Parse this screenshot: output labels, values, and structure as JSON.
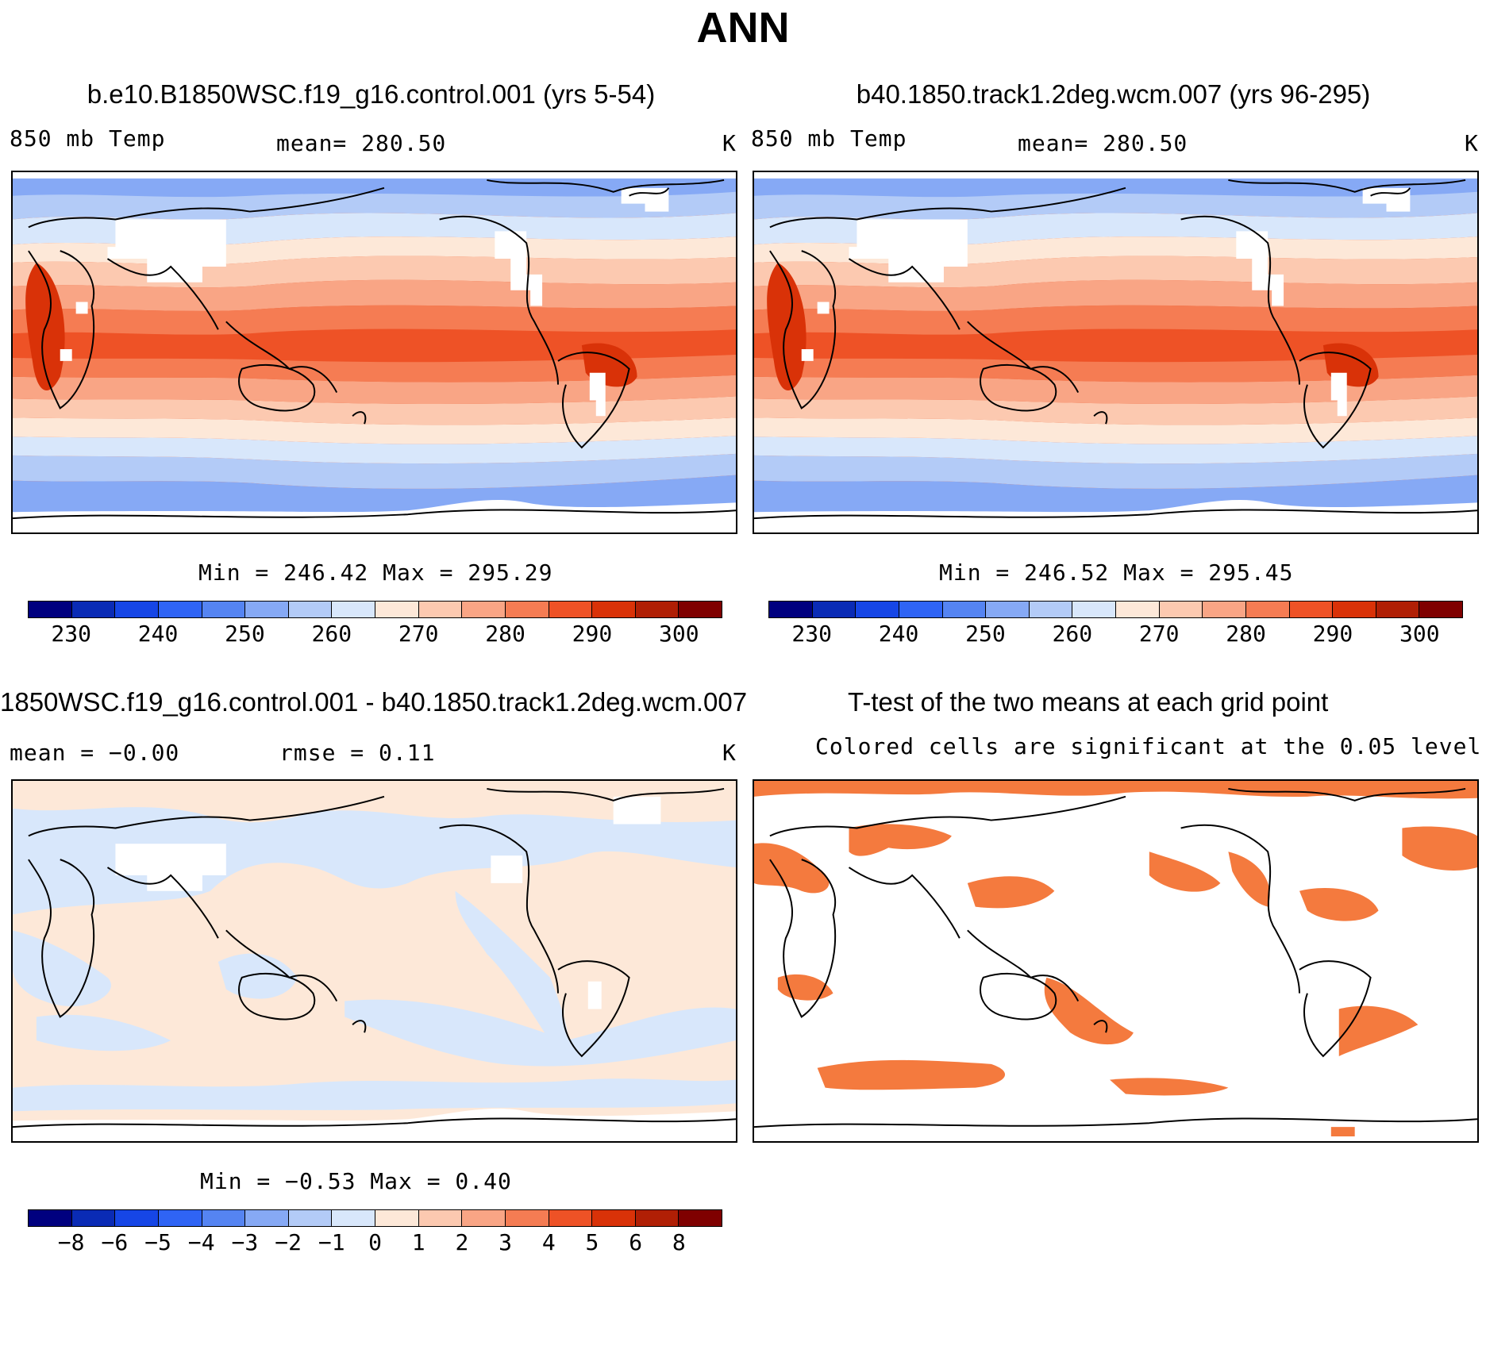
{
  "title": "ANN",
  "panels": [
    {
      "title": "b.e10.B1850WSC.f19_g16.control.001 (yrs 5-54)",
      "left_label": "850 mb Temp",
      "center_label": "mean= 280.50",
      "units": "K",
      "minmax": "Min = 246.42 Max = 295.29"
    },
    {
      "title": "b40.1850.track1.2deg.wcm.007 (yrs 96-295)",
      "left_label": "850 mb Temp",
      "center_label": "mean= 280.50",
      "units": "K",
      "minmax": "Min = 246.52 Max = 295.45"
    },
    {
      "title": "1850WSC.f19_g16.control.001 - b40.1850.track1.2deg.wcm.007",
      "left_label": "mean =   −0.00",
      "center_label": "rmse =    0.11",
      "units": "K",
      "minmax": "Min =  −0.53 Max =    0.40"
    },
    {
      "title": "T-test of the two means at each grid point",
      "subtitle": "Colored cells are significant at the 0.05 level"
    }
  ],
  "colorbar_temp": {
    "colors": [
      "#00007f",
      "#0a2bb5",
      "#1646e6",
      "#2f64f5",
      "#5584f2",
      "#86a9f5",
      "#b3cbf7",
      "#d8e7fb",
      "#fde8d8",
      "#fcc9b0",
      "#f9a585",
      "#f57c53",
      "#ee5226",
      "#d93208",
      "#b01f05",
      "#7f0000"
    ],
    "tick_labels": [
      "230",
      "240",
      "250",
      "260",
      "270",
      "280",
      "290",
      "300"
    ]
  },
  "colorbar_diff": {
    "colors": [
      "#00007f",
      "#0a2bb5",
      "#1646e6",
      "#2f64f5",
      "#5584f2",
      "#86a9f5",
      "#b3cbf7",
      "#d8e7fb",
      "#fde8d8",
      "#fcc9b0",
      "#f9a585",
      "#f57c53",
      "#ee5226",
      "#d93208",
      "#b01f05",
      "#7f0000"
    ],
    "tick_labels": [
      "−8",
      "−6",
      "−5",
      "−4",
      "−3",
      "−2",
      "−1",
      "0",
      "1",
      "2",
      "3",
      "4",
      "5",
      "6",
      "8"
    ]
  },
  "ttest_color": "#f47a3e"
}
